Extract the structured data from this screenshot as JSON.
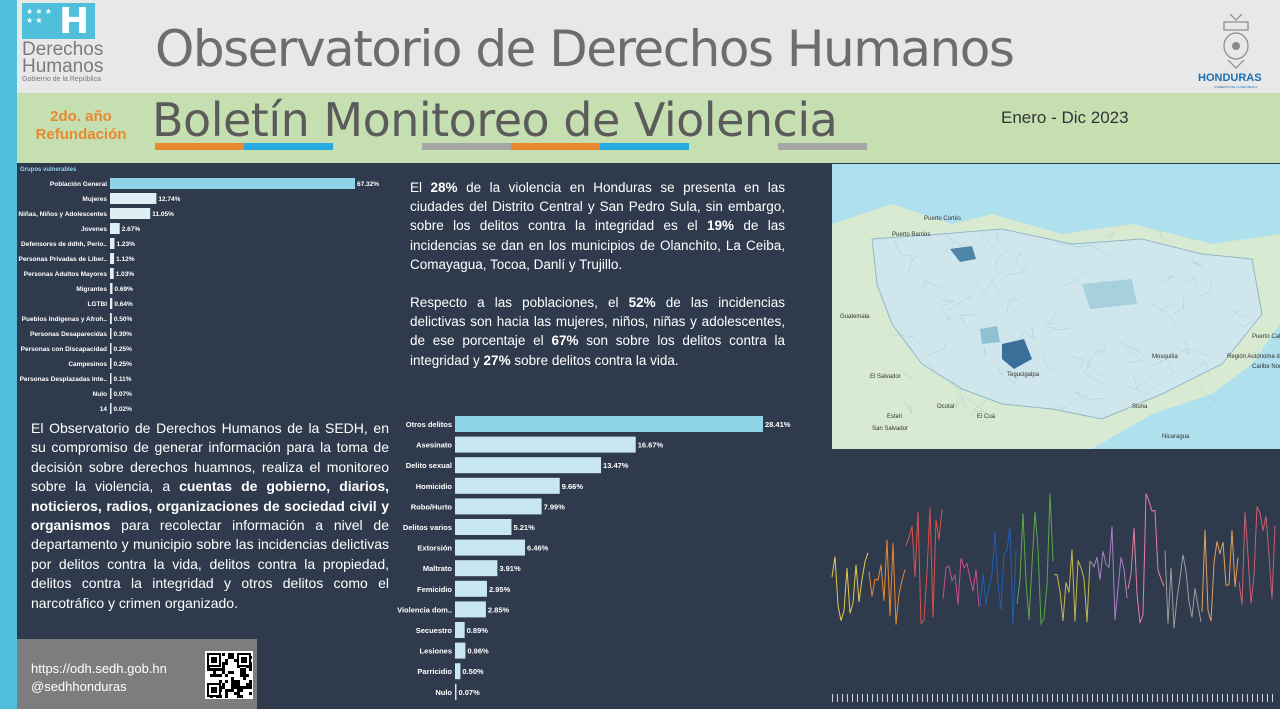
{
  "header": {
    "logo_letter": "H",
    "org_line1": "Derechos",
    "org_line2": "Humanos",
    "org_sub": "Gobierno de la República",
    "main_title": "Observatorio de Derechos Humanos",
    "emblem_text": "HONDURAS",
    "emblem_sub": "GOBIERNO DE LA REPÚBLICA"
  },
  "band": {
    "year_line1": "2do. año",
    "year_line2": "Refundación",
    "title": "Boletín Monitoreo de Violencia",
    "date": "Enero - Dic 2023",
    "stripe_colors": [
      "#e8882f",
      "#27a9e1",
      "#c6dfb1",
      "#a6a6a6",
      "#e8882f",
      "#27a9e1",
      "#c6dfb1",
      "#a6a6a6"
    ]
  },
  "chart_data": [
    {
      "type": "bar",
      "orientation": "horizontal",
      "title": "Grupos vulnerables",
      "categories": [
        "Población General",
        "Mujeres",
        "Niñas, Niños y Adolescentes",
        "Jovenes",
        "Defensores de ddhh, Perio..",
        "Personas Privadas de Liber..",
        "Personas Adultos Mayores",
        "Migrantes",
        "LGTBI",
        "Pueblos Indigenas y Afroh..",
        "Personas Desaparecidas",
        "Personas con Discapacidad",
        "Campesinos",
        "Personas Desplazadas Inte..",
        "Nulo",
        "14"
      ],
      "values": [
        67.32,
        12.74,
        11.05,
        2.67,
        1.23,
        1.12,
        1.03,
        0.69,
        0.64,
        0.5,
        0.3,
        0.25,
        0.25,
        0.11,
        0.07,
        0.02
      ],
      "value_labels": [
        "67.32%",
        "12.74%",
        "11.05%",
        "2.67%",
        "1.23%",
        "1.12%",
        "1.03%",
        "0.69%",
        "0.64%",
        "0.50%",
        "0.30%",
        "0.25%",
        "0.25%",
        "0.11%",
        "0.07%",
        "0.02%"
      ],
      "highlight_color": "#8fd3e8",
      "bar_color": "#ddeef4"
    },
    {
      "type": "bar",
      "orientation": "horizontal",
      "categories": [
        "Otros delitos",
        "Asesinato",
        "Delito sexual",
        "Homicidio",
        "Robo/Hurto",
        "Delitos varios",
        "Extorsión",
        "Maltrato",
        "Femicidio",
        "Violencia dom..",
        "Secuestro",
        "Lesiones",
        "Parricidio",
        "Nulo"
      ],
      "values": [
        28.41,
        16.67,
        13.47,
        9.66,
        7.99,
        5.21,
        6.46,
        3.91,
        2.95,
        2.85,
        0.89,
        0.96,
        0.5,
        0.07
      ],
      "value_labels": [
        "28.41%",
        "16.67%",
        "13.47%",
        "9.66%",
        "7.99%",
        "5.21%",
        "6.46%",
        "3.91%",
        "2.95%",
        "2.85%",
        "0.89%",
        "0.96%",
        "0.50%",
        "0.07%"
      ],
      "highlight_color": "#8fd3e8",
      "bar_color": "#c8e7f1"
    }
  ],
  "intro": {
    "p1": "El Observatorio de Derechos Humanos de la SEDH, en su  compromiso de generar información para la toma de decisión sobre derechos huamnos, realiza el monitoreo sobre la violencia, a ",
    "p1_bold": "cuentas de gobierno, diarios, noticieros, radios, organizaciones de sociedad civil y organismos",
    "p1_end": " para recolectar información a nivel de departamento y municipio sobre las incidencias delictivas por delitos contra la vida, delitos contra la propiedad, delitos contra la integridad y otros delitos como el narcotráfico y crimen organizado."
  },
  "contact": {
    "url": "https://odh.sedh.gob.hn",
    "handle": "@sedhhonduras"
  },
  "summary": {
    "p1_a": "El ",
    "p1_b": "28%",
    "p1_c": " de la violencia en Honduras se presenta en las ciudades del Distrito Central y San Pedro Sula, sin embargo, sobre los delitos contra la integridad es el ",
    "p1_d": "19%",
    "p1_e": " de las incidencias se dan en los municipios de Olanchito, La Ceiba, Comayagua, Tocoa, Danlí y Trujillo.",
    "p2_a": "Respecto a las poblaciones, el ",
    "p2_b": "52%",
    "p2_c": " de las incidencias delictivas son hacia las mujeres, niños, niñas y adolescentes, de ese porcentaje el ",
    "p2_d": "67%",
    "p2_e": " son sobre los delitos contra la integridad y ",
    "p2_f": "27%",
    "p2_g": " sobre delitos contra la vida."
  },
  "map": {
    "labels": [
      "Puerto Cortés",
      "Puerto Barrios",
      "Guatemala",
      "Tegucigalpa",
      "San Salvador",
      "El Salvador",
      "Nicaragua",
      "Región Autónoma de la Costa Caribe Norte",
      "Puerto Cabezas",
      "Ocotal",
      "Estelí",
      "El Cuá",
      "Siuna",
      "Mosquitia",
      "Caribe Norte"
    ]
  }
}
